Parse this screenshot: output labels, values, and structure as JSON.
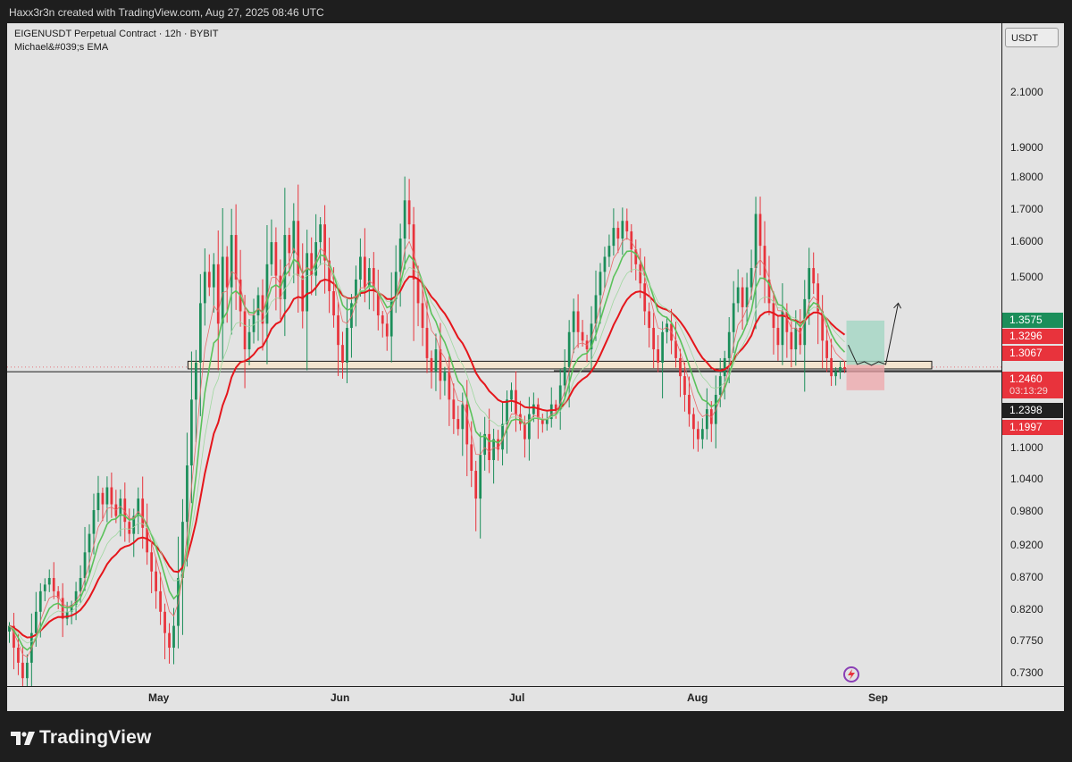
{
  "header": {
    "credit": "Haxx3r3n created with TradingView.com, Aug 27, 2025 08:46 UTC"
  },
  "legend": {
    "symbol": "EIGENUSDT Perpetual Contract · 12h · BYBIT",
    "indicator": "Michael&#039;s EMA"
  },
  "price_scale": {
    "currency": "USDT",
    "ticks": [
      "2.1000",
      "1.9000",
      "1.8000",
      "1.7000",
      "1.6000",
      "1.5000",
      "0.9800",
      "0.9200",
      "0.8700",
      "0.8200",
      "0.7750",
      "0.7300",
      "1.1000",
      "1.0400"
    ]
  },
  "price_tags": {
    "target": "1.3575",
    "ema_fast": "1.3296",
    "ema_slow": "1.3067",
    "current": "1.2460",
    "countdown": "03:13:29",
    "support": "1.2398",
    "stop": "1.1997"
  },
  "time_axis": {
    "months": [
      "May",
      "Jun",
      "Jul",
      "Aug",
      "Sep"
    ]
  },
  "footer": {
    "brand": "TradingView"
  },
  "colors": {
    "up": "#1b8e5a",
    "down": "#e8333c",
    "ema_slow": "#e5161c",
    "ema_fast": "#5bc25b",
    "background": "#e3e3e3"
  },
  "chart_data": {
    "type": "candlestick",
    "symbol": "EIGENUSDT",
    "timeframe": "12h",
    "scale": "log",
    "y_range": [
      0.71,
      2.3
    ],
    "x_range": [
      "2025-04-14",
      "2025-09-20"
    ],
    "closes": [
      0.79,
      0.76,
      0.74,
      0.72,
      0.74,
      0.78,
      0.81,
      0.84,
      0.85,
      0.86,
      0.84,
      0.83,
      0.8,
      0.81,
      0.82,
      0.84,
      0.86,
      0.9,
      0.93,
      0.97,
      1.0,
      0.98,
      1.01,
      0.98,
      0.96,
      0.99,
      0.95,
      0.93,
      0.96,
      0.99,
      0.94,
      0.9,
      0.87,
      0.84,
      0.81,
      0.78,
      0.76,
      0.79,
      0.86,
      0.95,
      1.05,
      1.18,
      1.26,
      1.4,
      1.48,
      1.44,
      1.5,
      1.35,
      1.52,
      1.44,
      1.58,
      1.46,
      1.38,
      1.29,
      1.33,
      1.37,
      1.42,
      1.35,
      1.5,
      1.56,
      1.47,
      1.41,
      1.58,
      1.53,
      1.62,
      1.47,
      1.38,
      1.53,
      1.47,
      1.56,
      1.61,
      1.51,
      1.43,
      1.37,
      1.3,
      1.26,
      1.34,
      1.4,
      1.46,
      1.52,
      1.44,
      1.49,
      1.43,
      1.37,
      1.35,
      1.32,
      1.41,
      1.48,
      1.57,
      1.68,
      1.61,
      1.46,
      1.4,
      1.34,
      1.27,
      1.24,
      1.29,
      1.22,
      1.24,
      1.18,
      1.14,
      1.12,
      1.17,
      1.09,
      1.04,
      0.99,
      1.07,
      1.11,
      1.06,
      1.1,
      1.08,
      1.13,
      1.18,
      1.2,
      1.15,
      1.13,
      1.1,
      1.15,
      1.17,
      1.14,
      1.13,
      1.14,
      1.17,
      1.16,
      1.21,
      1.25,
      1.33,
      1.38,
      1.33,
      1.31,
      1.29,
      1.35,
      1.42,
      1.48,
      1.52,
      1.55,
      1.6,
      1.57,
      1.62,
      1.59,
      1.54,
      1.5,
      1.45,
      1.38,
      1.34,
      1.29,
      1.26,
      1.33,
      1.35,
      1.31,
      1.27,
      1.23,
      1.19,
      1.15,
      1.12,
      1.1,
      1.12,
      1.16,
      1.13,
      1.19,
      1.23,
      1.27,
      1.33,
      1.4,
      1.44,
      1.39,
      1.44,
      1.49,
      1.64,
      1.55,
      1.46,
      1.4,
      1.34,
      1.3,
      1.38,
      1.33,
      1.29,
      1.34,
      1.3,
      1.41,
      1.49,
      1.45,
      1.38,
      1.31,
      1.27,
      1.23,
      1.24,
      1.25,
      1.246
    ],
    "ema_fast_last": 1.3296,
    "ema_slow_last": 1.3067,
    "support_zone": [
      1.246,
      1.263
    ],
    "support_line": 1.2398,
    "position": {
      "entry": 1.255,
      "target": 1.3575,
      "stop": 1.1997
    },
    "projection": "dip-then-rise arrow"
  }
}
